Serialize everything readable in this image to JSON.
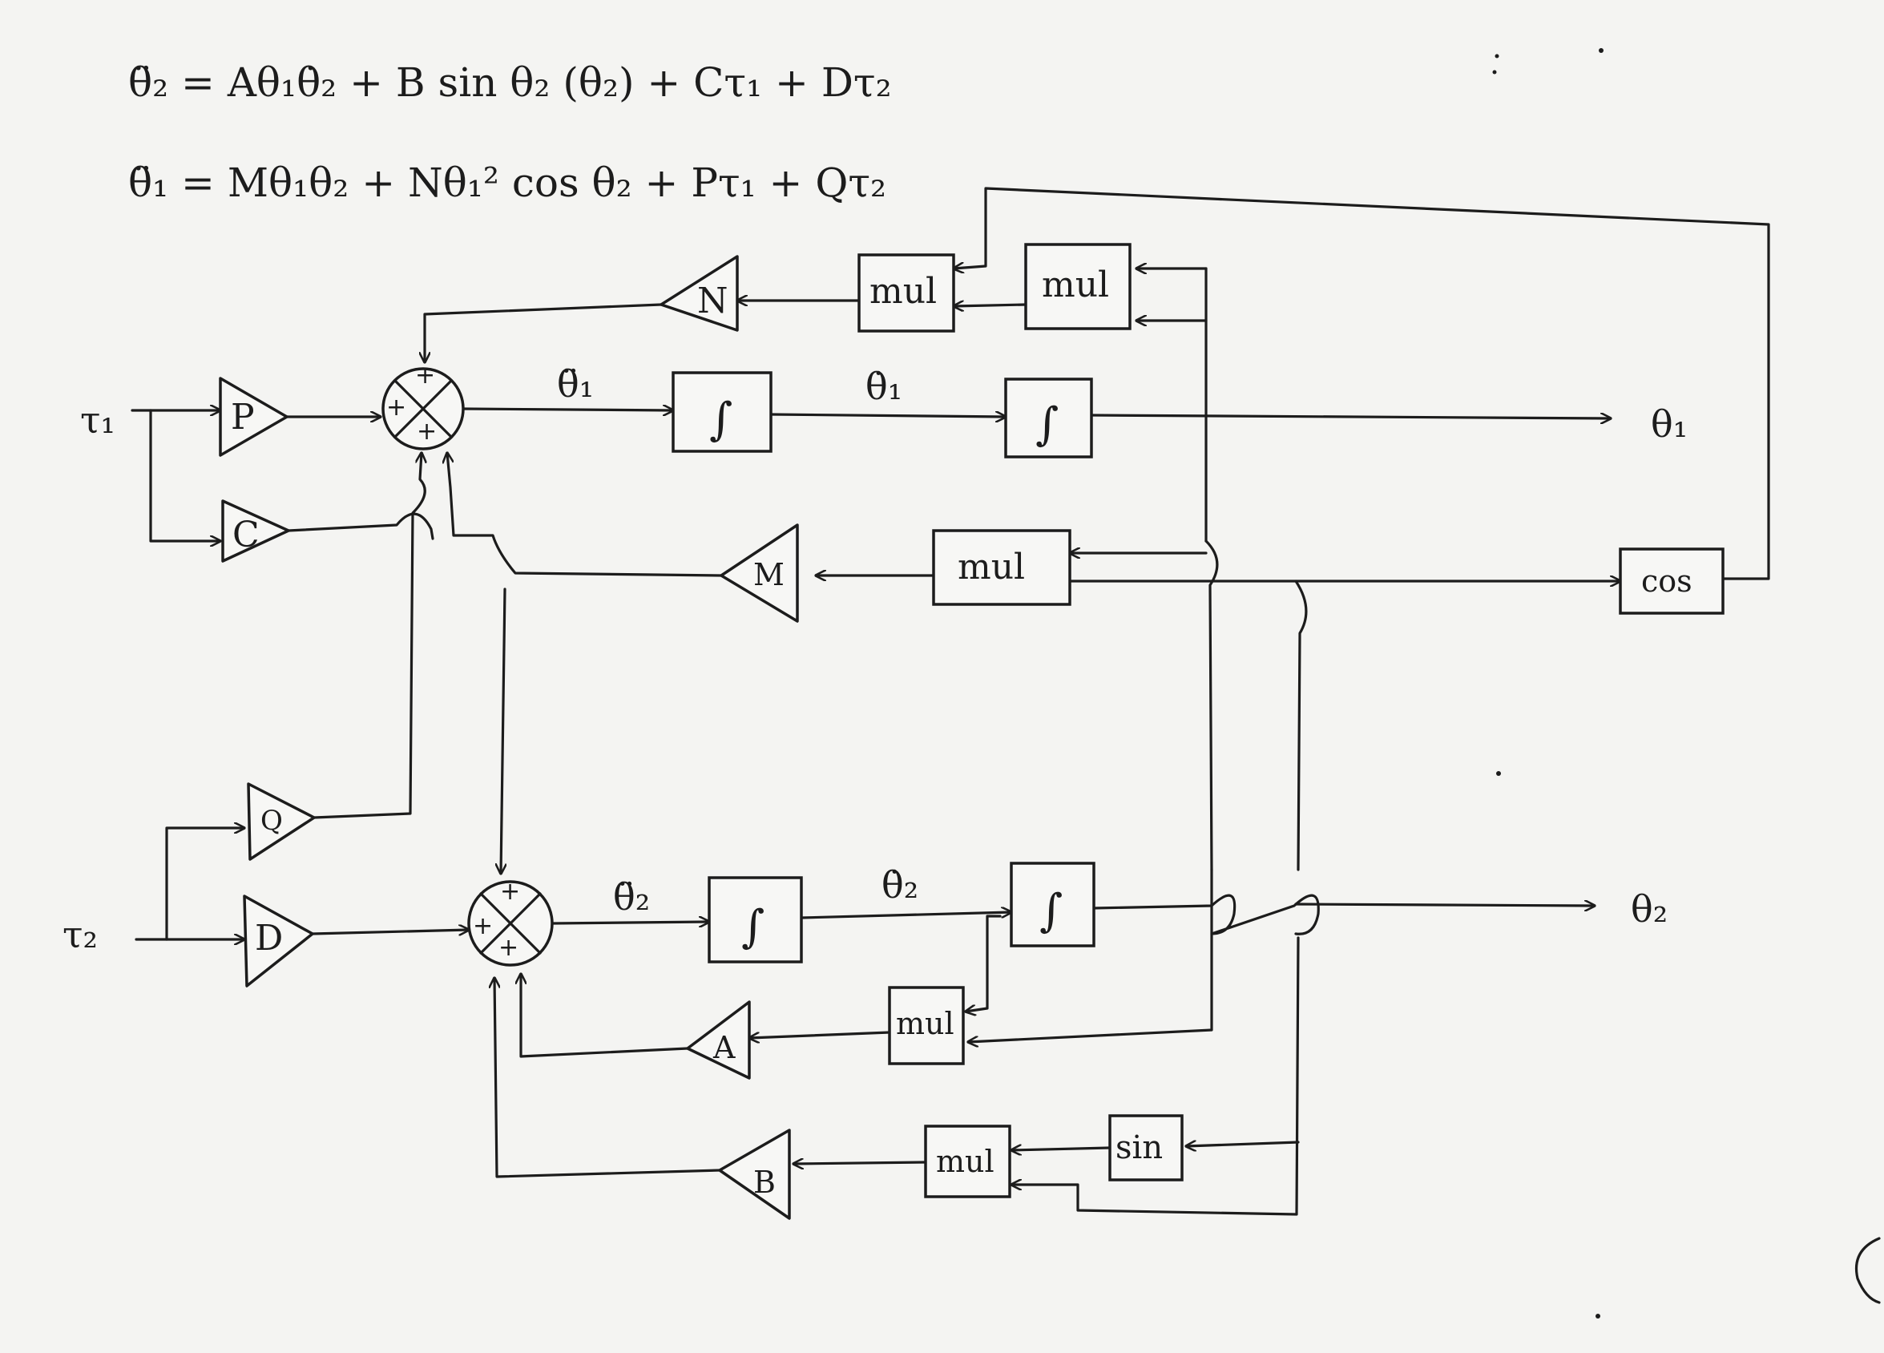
{
  "equations": {
    "eq1": "θ̈₂ = Aθ₁θ̇₂ + B sin θ₂ (θ₂) + Cτ₁ + Dτ₂",
    "eq2": "θ̈₁ = Mθ₁θ₂ + Nθ₁² cos θ₂ + Pτ₁ + Qτ₂"
  },
  "signals": {
    "tau1": "τ₁",
    "tau2": "τ₂",
    "theta1_ddot": "θ̈₁",
    "theta1_dot": "θ̇₁",
    "theta1": "θ₁",
    "theta2_ddot": "θ̈₂",
    "theta2_dot": "θ̇₂",
    "theta2": "θ₂"
  },
  "gains": {
    "P": "P",
    "C": "C",
    "Q": "Q",
    "D": "D",
    "N": "N",
    "M": "M",
    "A": "A",
    "B": "B"
  },
  "blocks": {
    "mul": "mul",
    "cos": "cos",
    "sin": "sin",
    "integrator": "∫"
  },
  "sum_signs": {
    "plus": "+"
  }
}
